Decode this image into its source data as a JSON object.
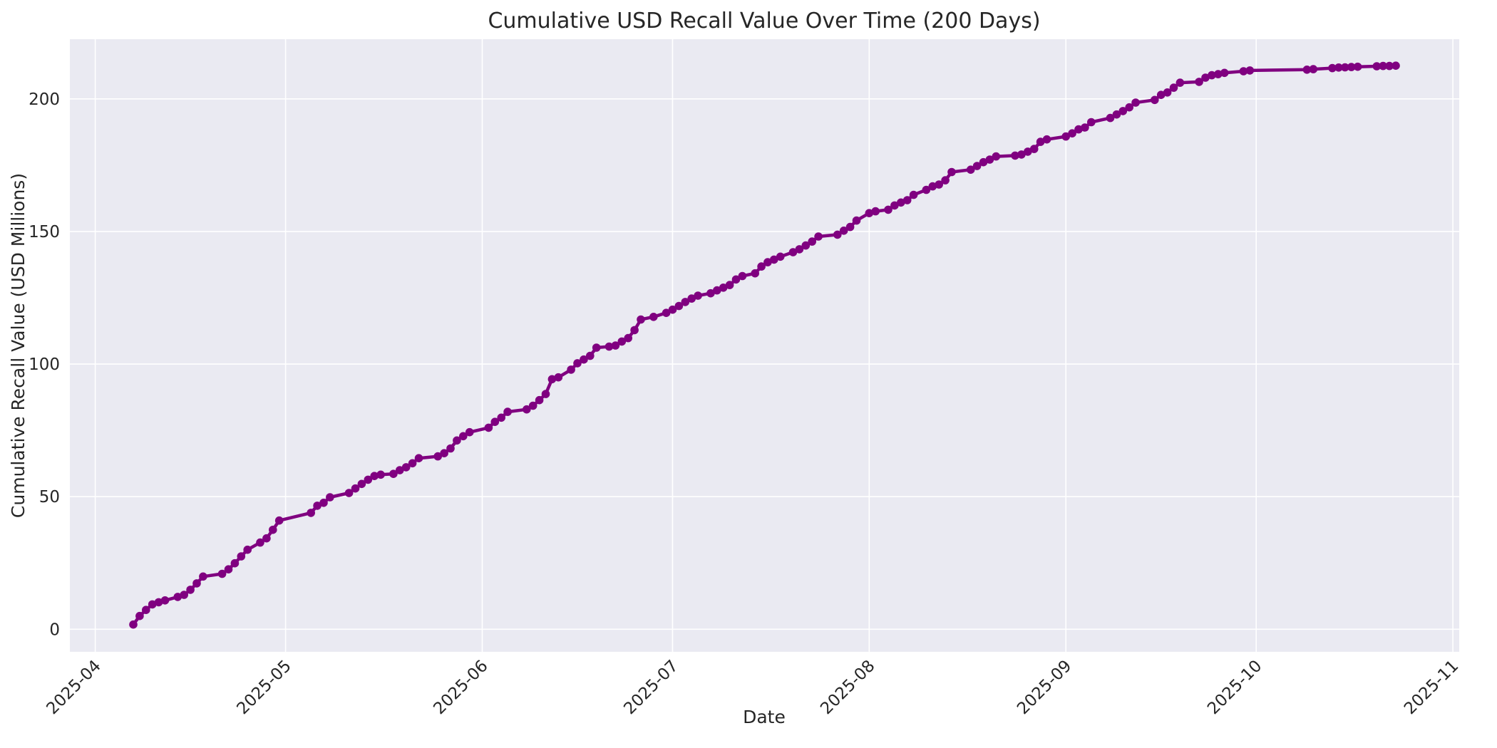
{
  "chart_data": {
    "type": "line",
    "title": "Cumulative USD Recall Value Over Time (200 Days)",
    "xlabel": "Date",
    "ylabel": "Cumulative Recall Value (USD Millions)",
    "legend_position": "none",
    "grid": true,
    "style": {
      "plot_background": "#eaeaf2",
      "gridline_color": "#ffffff",
      "line_color": "#800080",
      "marker_color": "#800080",
      "text_color": "#262626",
      "figure_background": "#ffffff"
    },
    "x_ticks": [
      {
        "label": "2025-04",
        "date": "2025-04-01"
      },
      {
        "label": "2025-05",
        "date": "2025-05-01"
      },
      {
        "label": "2025-06",
        "date": "2025-06-01"
      },
      {
        "label": "2025-07",
        "date": "2025-07-01"
      },
      {
        "label": "2025-08",
        "date": "2025-08-01"
      },
      {
        "label": "2025-09",
        "date": "2025-09-01"
      },
      {
        "label": "2025-10",
        "date": "2025-10-01"
      },
      {
        "label": "2025-11",
        "date": "2025-11-01"
      }
    ],
    "y_ticks": [
      0,
      50,
      100,
      150,
      200
    ],
    "xlim": [
      "2025-03-28",
      "2025-11-02"
    ],
    "ylim": [
      -8.5,
      222.5
    ],
    "series": [
      {
        "name": "Cumulative Recall Value",
        "points": [
          [
            "2025-04-07",
            1.8
          ],
          [
            "2025-04-08",
            5.0
          ],
          [
            "2025-04-09",
            7.3
          ],
          [
            "2025-04-10",
            9.4
          ],
          [
            "2025-04-11",
            10.2
          ],
          [
            "2025-04-12",
            10.9
          ],
          [
            "2025-04-14",
            12.2
          ],
          [
            "2025-04-15",
            13.0
          ],
          [
            "2025-04-16",
            14.9
          ],
          [
            "2025-04-17",
            17.3
          ],
          [
            "2025-04-18",
            19.9
          ],
          [
            "2025-04-21",
            20.9
          ],
          [
            "2025-04-22",
            22.6
          ],
          [
            "2025-04-23",
            24.9
          ],
          [
            "2025-04-24",
            27.5
          ],
          [
            "2025-04-25",
            30.0
          ],
          [
            "2025-04-27",
            32.7
          ],
          [
            "2025-04-28",
            34.3
          ],
          [
            "2025-04-29",
            37.5
          ],
          [
            "2025-04-30",
            41.0
          ],
          [
            "2025-05-05",
            43.9
          ],
          [
            "2025-05-06",
            46.6
          ],
          [
            "2025-05-07",
            47.7
          ],
          [
            "2025-05-08",
            49.8
          ],
          [
            "2025-05-11",
            51.4
          ],
          [
            "2025-05-12",
            53.1
          ],
          [
            "2025-05-13",
            54.8
          ],
          [
            "2025-05-14",
            56.4
          ],
          [
            "2025-05-15",
            57.8
          ],
          [
            "2025-05-16",
            58.3
          ],
          [
            "2025-05-18",
            58.6
          ],
          [
            "2025-05-19",
            60.0
          ],
          [
            "2025-05-20",
            61.1
          ],
          [
            "2025-05-21",
            62.6
          ],
          [
            "2025-05-22",
            64.5
          ],
          [
            "2025-05-25",
            65.2
          ],
          [
            "2025-05-26",
            66.4
          ],
          [
            "2025-05-27",
            68.2
          ],
          [
            "2025-05-28",
            71.2
          ],
          [
            "2025-05-29",
            72.8
          ],
          [
            "2025-05-30",
            74.3
          ],
          [
            "2025-06-02",
            76.0
          ],
          [
            "2025-06-03",
            78.2
          ],
          [
            "2025-06-04",
            79.8
          ],
          [
            "2025-06-05",
            82.0
          ],
          [
            "2025-06-08",
            82.9
          ],
          [
            "2025-06-09",
            84.3
          ],
          [
            "2025-06-10",
            86.4
          ],
          [
            "2025-06-11",
            88.7
          ],
          [
            "2025-06-12",
            94.3
          ],
          [
            "2025-06-13",
            95.0
          ],
          [
            "2025-06-15",
            97.9
          ],
          [
            "2025-06-16",
            100.3
          ],
          [
            "2025-06-17",
            101.7
          ],
          [
            "2025-06-18",
            103.1
          ],
          [
            "2025-06-19",
            106.2
          ],
          [
            "2025-06-21",
            106.6
          ],
          [
            "2025-06-22",
            107.0
          ],
          [
            "2025-06-23",
            108.5
          ],
          [
            "2025-06-24",
            109.8
          ],
          [
            "2025-06-25",
            112.8
          ],
          [
            "2025-06-26",
            116.8
          ],
          [
            "2025-06-28",
            117.8
          ],
          [
            "2025-06-30",
            119.3
          ],
          [
            "2025-07-01",
            120.5
          ],
          [
            "2025-07-02",
            121.9
          ],
          [
            "2025-07-03",
            123.4
          ],
          [
            "2025-07-04",
            124.7
          ],
          [
            "2025-07-05",
            125.8
          ],
          [
            "2025-07-07",
            126.7
          ],
          [
            "2025-07-08",
            127.8
          ],
          [
            "2025-07-09",
            128.8
          ],
          [
            "2025-07-10",
            129.8
          ],
          [
            "2025-07-11",
            131.9
          ],
          [
            "2025-07-12",
            133.2
          ],
          [
            "2025-07-14",
            134.2
          ],
          [
            "2025-07-15",
            136.8
          ],
          [
            "2025-07-16",
            138.4
          ],
          [
            "2025-07-17",
            139.4
          ],
          [
            "2025-07-18",
            140.5
          ],
          [
            "2025-07-20",
            142.2
          ],
          [
            "2025-07-21",
            143.3
          ],
          [
            "2025-07-22",
            144.7
          ],
          [
            "2025-07-23",
            146.2
          ],
          [
            "2025-07-24",
            148.1
          ],
          [
            "2025-07-27",
            148.8
          ],
          [
            "2025-07-28",
            150.3
          ],
          [
            "2025-07-29",
            151.7
          ],
          [
            "2025-07-30",
            154.1
          ],
          [
            "2025-08-01",
            156.9
          ],
          [
            "2025-08-02",
            157.6
          ],
          [
            "2025-08-04",
            158.2
          ],
          [
            "2025-08-05",
            159.8
          ],
          [
            "2025-08-06",
            160.9
          ],
          [
            "2025-08-07",
            161.8
          ],
          [
            "2025-08-08",
            163.8
          ],
          [
            "2025-08-10",
            165.7
          ],
          [
            "2025-08-11",
            167.0
          ],
          [
            "2025-08-12",
            167.7
          ],
          [
            "2025-08-13",
            169.3
          ],
          [
            "2025-08-14",
            172.4
          ],
          [
            "2025-08-17",
            173.3
          ],
          [
            "2025-08-18",
            174.7
          ],
          [
            "2025-08-19",
            176.1
          ],
          [
            "2025-08-20",
            177.1
          ],
          [
            "2025-08-21",
            178.3
          ],
          [
            "2025-08-24",
            178.6
          ],
          [
            "2025-08-25",
            179.0
          ],
          [
            "2025-08-26",
            180.1
          ],
          [
            "2025-08-27",
            181.1
          ],
          [
            "2025-08-28",
            183.8
          ],
          [
            "2025-08-29",
            184.7
          ],
          [
            "2025-09-01",
            185.8
          ],
          [
            "2025-09-02",
            187.0
          ],
          [
            "2025-09-03",
            188.5
          ],
          [
            "2025-09-04",
            189.2
          ],
          [
            "2025-09-05",
            191.2
          ],
          [
            "2025-09-08",
            192.8
          ],
          [
            "2025-09-09",
            194.1
          ],
          [
            "2025-09-10",
            195.4
          ],
          [
            "2025-09-11",
            196.8
          ],
          [
            "2025-09-12",
            198.6
          ],
          [
            "2025-09-15",
            199.6
          ],
          [
            "2025-09-16",
            201.5
          ],
          [
            "2025-09-17",
            202.4
          ],
          [
            "2025-09-18",
            204.2
          ],
          [
            "2025-09-19",
            206.1
          ],
          [
            "2025-09-22",
            206.4
          ],
          [
            "2025-09-23",
            208.0
          ],
          [
            "2025-09-24",
            208.9
          ],
          [
            "2025-09-25",
            209.3
          ],
          [
            "2025-09-26",
            209.8
          ],
          [
            "2025-09-29",
            210.4
          ],
          [
            "2025-09-30",
            210.7
          ],
          [
            "2025-10-09",
            211.0
          ],
          [
            "2025-10-10",
            211.2
          ],
          [
            "2025-10-13",
            211.6
          ],
          [
            "2025-10-14",
            211.8
          ],
          [
            "2025-10-15",
            211.9
          ],
          [
            "2025-10-16",
            212.0
          ],
          [
            "2025-10-17",
            212.1
          ],
          [
            "2025-10-20",
            212.3
          ],
          [
            "2025-10-21",
            212.4
          ],
          [
            "2025-10-22",
            212.4
          ],
          [
            "2025-10-23",
            212.5
          ]
        ]
      }
    ]
  }
}
